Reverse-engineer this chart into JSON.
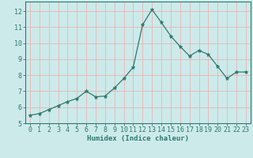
{
  "x": [
    0,
    1,
    2,
    3,
    4,
    5,
    6,
    7,
    8,
    9,
    10,
    11,
    12,
    13,
    14,
    15,
    16,
    17,
    18,
    19,
    20,
    21,
    22,
    23
  ],
  "y": [
    5.5,
    5.6,
    5.85,
    6.1,
    6.35,
    6.55,
    7.0,
    6.65,
    6.7,
    7.2,
    7.8,
    8.5,
    11.15,
    12.1,
    11.3,
    10.45,
    9.8,
    9.2,
    9.55,
    9.3,
    8.55,
    7.8,
    8.2,
    8.2
  ],
  "line_color": "#2d7a6e",
  "marker": "*",
  "bg_color": "#cdeaea",
  "grid_color": "#e8b4b4",
  "xlabel": "Humidex (Indice chaleur)",
  "xlim": [
    -0.5,
    23.5
  ],
  "ylim": [
    5.0,
    12.6
  ],
  "yticks": [
    5,
    6,
    7,
    8,
    9,
    10,
    11,
    12
  ],
  "xticks": [
    0,
    1,
    2,
    3,
    4,
    5,
    6,
    7,
    8,
    9,
    10,
    11,
    12,
    13,
    14,
    15,
    16,
    17,
    18,
    19,
    20,
    21,
    22,
    23
  ],
  "label_fontsize": 6.5,
  "tick_fontsize": 6.0,
  "tick_color": "#2d7a6e",
  "spine_color": "#2d7a6e"
}
